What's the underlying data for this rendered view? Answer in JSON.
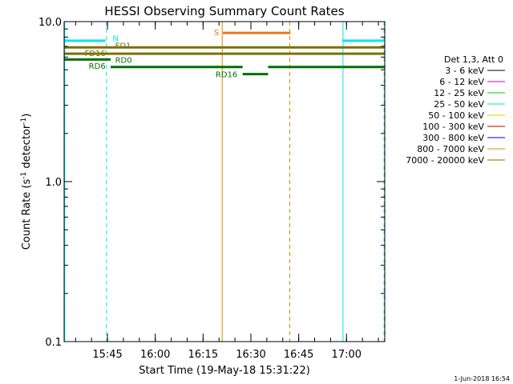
{
  "chart_data": {
    "type": "line",
    "title": "HESSI Observing Summary Count Rates",
    "xlabel": "Start Time (19-May-18 15:31:22)",
    "ylabel_parts": [
      "Count Rate (s",
      "-1",
      " detector",
      "-1",
      ")"
    ],
    "ylabel": "Count Rate (s^-1 detector^-1)",
    "y_scale": "log",
    "ylim": [
      0.1,
      10.0
    ],
    "xlim_minutes": [
      0,
      100.6
    ],
    "y_ticks": [
      {
        "value": 0.1,
        "label": "0.1"
      },
      {
        "value": 1.0,
        "label": "1.0"
      },
      {
        "value": 10.0,
        "label": "10.0"
      }
    ],
    "x_ticks": [
      {
        "minute": 13.6,
        "label": "15:45"
      },
      {
        "minute": 28.6,
        "label": "16:00"
      },
      {
        "minute": 43.6,
        "label": "16:15"
      },
      {
        "minute": 58.6,
        "label": "16:30"
      },
      {
        "minute": 73.6,
        "label": "16:45"
      },
      {
        "minute": 88.6,
        "label": "17:00"
      }
    ],
    "legend": {
      "placement": "right",
      "header": "Det 1,3, Att 0",
      "entries": [
        {
          "label": "3 - 6 keV",
          "color": "#000000"
        },
        {
          "label": "6 - 12 keV",
          "color": "#d400d4"
        },
        {
          "label": "12 - 25 keV",
          "color": "#00cc00"
        },
        {
          "label": "25 - 50 keV",
          "color": "#00e5ee"
        },
        {
          "label": "50 - 100 keV",
          "color": "#e5c800"
        },
        {
          "label": "100 - 300 keV",
          "color": "#b00000"
        },
        {
          "label": "300 - 800 keV",
          "color": "#0000cc"
        },
        {
          "label": "800 - 7000 keV",
          "color": "#d78a00"
        },
        {
          "label": "7000 - 20000 keV",
          "color": "#7a7000"
        }
      ]
    },
    "segments": [
      {
        "flag": "N",
        "color": "#00e5ee",
        "x0": 0,
        "x1": 13.0,
        "y": 7.6
      },
      {
        "flag": "N",
        "color": "#00e5ee",
        "x0": 87.3,
        "x1": 100.5,
        "y": 7.6
      },
      {
        "flag": "FD1",
        "color": "#7a7000",
        "x0": 0,
        "x1": 100.5,
        "y": 6.9
      },
      {
        "flag": "FD16",
        "color": "#7a7000",
        "x0": 0,
        "x1": 100.5,
        "y": 6.3
      },
      {
        "flag": "RD0",
        "color": "#007000",
        "x0": 0,
        "x1": 14.6,
        "y": 5.8
      },
      {
        "flag": "RD6",
        "color": "#007000",
        "x0": 14.6,
        "x1": 56.0,
        "y": 5.2
      },
      {
        "flag": "RD6",
        "color": "#007000",
        "x0": 64.0,
        "x1": 100.5,
        "y": 5.2
      },
      {
        "flag": "RD16",
        "color": "#007000",
        "x0": 56.0,
        "x1": 64.0,
        "y": 4.7
      },
      {
        "flag": "S",
        "color": "#e87820",
        "x0": 49.8,
        "x1": 71.0,
        "y": 8.5
      }
    ],
    "flag_labels": [
      {
        "text": "N",
        "color": "#00e5ee",
        "x": 15.2,
        "y": 7.9,
        "anchor": "start"
      },
      {
        "text": "FD1",
        "color": "#7a7000",
        "x": 16.0,
        "y": 7.1,
        "anchor": "start"
      },
      {
        "text": "FD16",
        "color": "#7a7000",
        "x": 13.0,
        "y": 6.4,
        "anchor": "end"
      },
      {
        "text": "RD0",
        "color": "#007000",
        "x": 16.0,
        "y": 5.8,
        "anchor": "start"
      },
      {
        "text": "RD6",
        "color": "#007000",
        "x": 13.0,
        "y": 5.3,
        "anchor": "end"
      },
      {
        "text": "RD16",
        "color": "#007000",
        "x": 54.4,
        "y": 4.7,
        "anchor": "end"
      },
      {
        "text": "S",
        "color": "#e87820",
        "x": 48.6,
        "y": 8.6,
        "anchor": "end"
      }
    ],
    "vlines": [
      {
        "minute": 0.2,
        "color": "#00e5ee",
        "style": "solid"
      },
      {
        "minute": 13.3,
        "color": "#00e5ee",
        "style": "dashed"
      },
      {
        "minute": 49.6,
        "color": "#d78a00",
        "style": "solid"
      },
      {
        "minute": 70.8,
        "color": "#d78a00",
        "style": "dashed"
      },
      {
        "minute": 87.5,
        "color": "#00e5ee",
        "style": "solid"
      },
      {
        "minute": 100.4,
        "color": "#00e5ee",
        "style": "dashed"
      }
    ]
  },
  "footer": {
    "timestamp": "1-Jun-2018 16:54"
  }
}
